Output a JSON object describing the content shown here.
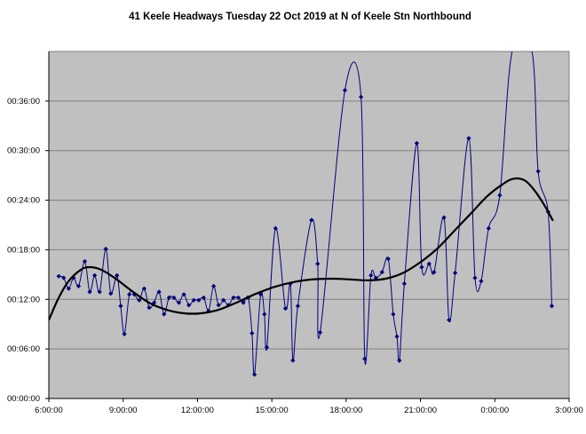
{
  "chart_data": {
    "type": "line",
    "title": "41 Keele Headways Tuesday 22 Oct 2019 at N of Keele Stn Northbound",
    "xlabel": "",
    "ylabel": "",
    "x_axis": {
      "unit": "clock time (hours since 0:00 of the service day; values past 24 are after midnight)",
      "min": 6,
      "max": 27,
      "ticks": [
        6,
        9,
        12,
        15,
        18,
        21,
        24,
        27
      ],
      "tick_labels": [
        "6:00:00",
        "9:00:00",
        "12:00:00",
        "15:00:00",
        "18:00:00",
        "21:00:00",
        "0:00:00",
        "3:00:00"
      ]
    },
    "y_axis": {
      "unit": "headway in minutes",
      "min": 0,
      "max": 42,
      "ticks": [
        0,
        6,
        12,
        18,
        24,
        30,
        36
      ],
      "tick_labels": [
        "00:00:00",
        "00:06:00",
        "00:12:00",
        "00:18:00",
        "00:24:00",
        "00:30:00",
        "00:36:00"
      ]
    },
    "grid": "horizontal",
    "legend": "none",
    "plot_background": "#c0c0c0",
    "colors": {
      "series": "#000080",
      "trend": "#000000"
    },
    "series": [
      {
        "role": "observed headways",
        "style": "smoothed line with diamond markers",
        "points": [
          [
            6.4,
            14.8
          ],
          [
            6.6,
            14.6
          ],
          [
            6.8,
            13.3
          ],
          [
            7.0,
            14.6
          ],
          [
            7.2,
            13.6
          ],
          [
            7.45,
            16.6
          ],
          [
            7.65,
            12.9
          ],
          [
            7.85,
            14.9
          ],
          [
            8.05,
            12.9
          ],
          [
            8.3,
            18.1
          ],
          [
            8.5,
            12.7
          ],
          [
            8.75,
            14.9
          ],
          [
            8.9,
            11.2
          ],
          [
            9.05,
            7.8
          ],
          [
            9.25,
            12.6
          ],
          [
            9.45,
            12.6
          ],
          [
            9.65,
            11.9
          ],
          [
            9.85,
            13.3
          ],
          [
            10.05,
            11.0
          ],
          [
            10.25,
            11.6
          ],
          [
            10.45,
            12.9
          ],
          [
            10.65,
            10.2
          ],
          [
            10.85,
            12.2
          ],
          [
            11.05,
            12.2
          ],
          [
            11.25,
            11.6
          ],
          [
            11.45,
            12.6
          ],
          [
            11.65,
            11.3
          ],
          [
            11.85,
            11.9
          ],
          [
            12.05,
            11.9
          ],
          [
            12.25,
            12.2
          ],
          [
            12.45,
            10.6
          ],
          [
            12.65,
            13.6
          ],
          [
            12.85,
            11.3
          ],
          [
            13.05,
            11.9
          ],
          [
            13.25,
            11.3
          ],
          [
            13.45,
            12.2
          ],
          [
            13.65,
            12.2
          ],
          [
            13.85,
            11.6
          ],
          [
            14.05,
            12.2
          ],
          [
            14.2,
            7.9
          ],
          [
            14.3,
            2.9
          ],
          [
            14.55,
            12.6
          ],
          [
            14.7,
            10.2
          ],
          [
            14.8,
            6.2
          ],
          [
            15.15,
            20.6
          ],
          [
            15.55,
            10.9
          ],
          [
            15.75,
            13.9
          ],
          [
            15.85,
            4.6
          ],
          [
            16.05,
            11.2
          ],
          [
            16.6,
            21.6
          ],
          [
            16.85,
            16.3
          ],
          [
            16.95,
            8.0
          ],
          [
            17.95,
            37.3
          ],
          [
            18.6,
            36.5
          ],
          [
            18.75,
            4.8
          ],
          [
            19.0,
            14.9
          ],
          [
            19.2,
            14.6
          ],
          [
            19.45,
            15.3
          ],
          [
            19.7,
            16.9
          ],
          [
            19.9,
            10.2
          ],
          [
            20.05,
            7.5
          ],
          [
            20.15,
            4.6
          ],
          [
            20.35,
            13.9
          ],
          [
            20.85,
            30.9
          ],
          [
            21.05,
            15.9
          ],
          [
            21.35,
            16.3
          ],
          [
            21.55,
            15.3
          ],
          [
            21.95,
            21.9
          ],
          [
            22.15,
            9.5
          ],
          [
            22.4,
            15.2
          ],
          [
            22.95,
            31.5
          ],
          [
            23.2,
            14.6
          ],
          [
            23.45,
            14.2
          ],
          [
            23.75,
            20.6
          ],
          [
            24.2,
            24.6
          ],
          [
            24.7,
            42.0
          ],
          [
            25.5,
            42.0
          ],
          [
            25.75,
            27.5
          ],
          [
            26.15,
            22.6
          ],
          [
            26.3,
            11.2
          ]
        ]
      },
      {
        "role": "polynomial trendline",
        "style": "thick black smooth line",
        "points": [
          [
            6.0,
            9.5
          ],
          [
            6.4,
            12.2
          ],
          [
            6.8,
            14.2
          ],
          [
            7.3,
            15.6
          ],
          [
            7.65,
            15.9
          ],
          [
            8.1,
            15.6
          ],
          [
            8.7,
            14.5
          ],
          [
            9.4,
            12.9
          ],
          [
            10.1,
            11.5
          ],
          [
            10.8,
            10.7
          ],
          [
            11.5,
            10.3
          ],
          [
            12.1,
            10.3
          ],
          [
            12.8,
            10.7
          ],
          [
            13.5,
            11.5
          ],
          [
            14.3,
            12.6
          ],
          [
            15.1,
            13.5
          ],
          [
            15.9,
            14.1
          ],
          [
            16.6,
            14.4
          ],
          [
            17.4,
            14.5
          ],
          [
            18.2,
            14.4
          ],
          [
            18.9,
            14.3
          ],
          [
            19.6,
            14.5
          ],
          [
            20.3,
            15.2
          ],
          [
            21.0,
            16.5
          ],
          [
            21.7,
            18.2
          ],
          [
            22.4,
            20.4
          ],
          [
            23.1,
            22.6
          ],
          [
            23.7,
            24.5
          ],
          [
            24.3,
            25.9
          ],
          [
            24.75,
            26.6
          ],
          [
            25.2,
            26.4
          ],
          [
            25.6,
            25.2
          ],
          [
            26.0,
            23.4
          ],
          [
            26.35,
            21.5
          ]
        ]
      }
    ]
  }
}
